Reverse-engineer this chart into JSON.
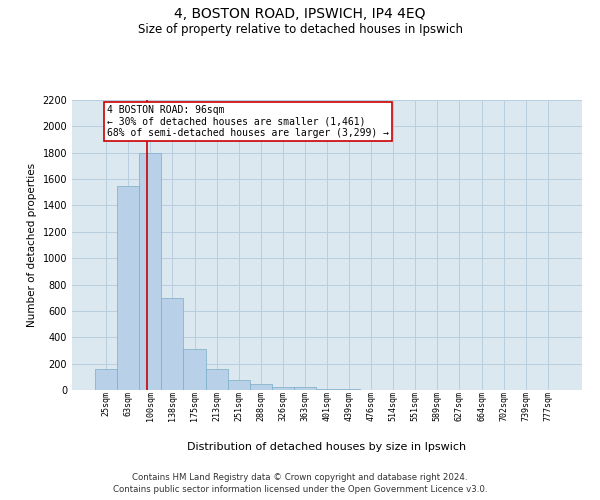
{
  "title": "4, BOSTON ROAD, IPSWICH, IP4 4EQ",
  "subtitle": "Size of property relative to detached houses in Ipswich",
  "xlabel": "Distribution of detached houses by size in Ipswich",
  "ylabel": "Number of detached properties",
  "categories": [
    "25sqm",
    "63sqm",
    "100sqm",
    "138sqm",
    "175sqm",
    "213sqm",
    "251sqm",
    "288sqm",
    "326sqm",
    "363sqm",
    "401sqm",
    "439sqm",
    "476sqm",
    "514sqm",
    "551sqm",
    "589sqm",
    "627sqm",
    "664sqm",
    "702sqm",
    "739sqm",
    "777sqm"
  ],
  "values": [
    160,
    1550,
    1800,
    700,
    310,
    160,
    75,
    45,
    25,
    20,
    10,
    5,
    2,
    0,
    0,
    0,
    0,
    0,
    0,
    0,
    0
  ],
  "bar_color": "#b8d0e8",
  "bar_edgecolor": "#7aaec8",
  "vline_x": 1.85,
  "vline_color": "#cc0000",
  "annotation_text": "4 BOSTON ROAD: 96sqm\n← 30% of detached houses are smaller (1,461)\n68% of semi-detached houses are larger (3,299) →",
  "annotation_box_color": "#ffffff",
  "annotation_box_edgecolor": "#cc0000",
  "ylim": [
    0,
    2200
  ],
  "yticks": [
    0,
    200,
    400,
    600,
    800,
    1000,
    1200,
    1400,
    1600,
    1800,
    2000,
    2200
  ],
  "footer_line1": "Contains HM Land Registry data © Crown copyright and database right 2024.",
  "footer_line2": "Contains public sector information licensed under the Open Government Licence v3.0.",
  "background_color": "#ffffff",
  "plot_bg_color": "#dce8f0",
  "grid_color": "#b8cede"
}
